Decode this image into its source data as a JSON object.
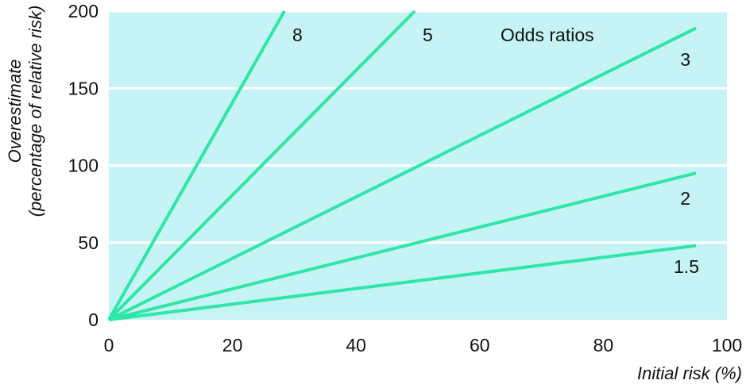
{
  "chart_data": {
    "type": "line",
    "title": "",
    "xlabel": "Initial risk (%)",
    "ylabel_line1": "Overestimate",
    "ylabel_line2": "(percentage of relative risk)",
    "legend_title": "Odds ratios",
    "xlim": [
      0,
      100
    ],
    "ylim": [
      0,
      200
    ],
    "x_ticks": [
      0,
      20,
      40,
      60,
      80,
      100
    ],
    "y_ticks": [
      0,
      50,
      100,
      150,
      200
    ],
    "grid": "horizontal",
    "colors": {
      "background": "#c6f3f5",
      "grid": "#ffffff",
      "line": "#2ee6a6"
    },
    "series": [
      {
        "name": "8",
        "x": [
          0,
          28.4
        ],
        "y": [
          0,
          200
        ]
      },
      {
        "name": "5",
        "x": [
          0,
          49.5
        ],
        "y": [
          0,
          200
        ]
      },
      {
        "name": "3",
        "x": [
          0,
          95
        ],
        "y": [
          0,
          189
        ]
      },
      {
        "name": "2",
        "x": [
          0,
          95
        ],
        "y": [
          0,
          95
        ]
      },
      {
        "name": "1.5",
        "x": [
          0,
          95
        ],
        "y": [
          0,
          48
        ]
      }
    ]
  }
}
